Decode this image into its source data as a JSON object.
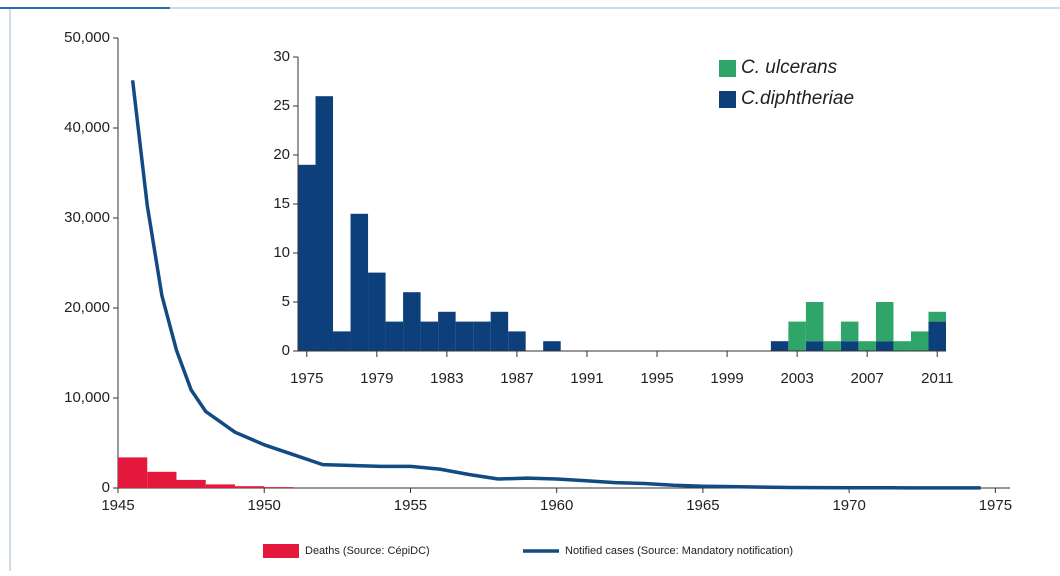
{
  "chart_data": [
    {
      "type": "line",
      "xlim": [
        1945,
        1975.5
      ],
      "xticks": [
        1945,
        1950,
        1955,
        1960,
        1965,
        1970,
        1975
      ],
      "ylim": [
        0,
        50000
      ],
      "yticks": [
        0,
        {
          "value": 10000,
          "label": "10,000"
        },
        {
          "value": 20000,
          "label": "20,000"
        },
        {
          "value": 30000,
          "label": "30,000"
        },
        {
          "value": 40000,
          "label": "40,000"
        },
        {
          "value": 50000,
          "label": "50,000"
        }
      ],
      "series": [
        {
          "name": "Deaths (Source: CépiDC)",
          "type": "bar",
          "color": "#e4183c",
          "x": [
            1945,
            1946,
            1947,
            1948,
            1949,
            1950
          ],
          "values": [
            3400,
            1800,
            900,
            400,
            200,
            100
          ]
        },
        {
          "name": "Notified cases (Source: Mandatory notification)",
          "type": "line",
          "color": "#124a82",
          "x": [
            1945.5,
            1946,
            1946.5,
            1947,
            1947.5,
            1948,
            1949,
            1950,
            1951,
            1952,
            1953,
            1954,
            1955,
            1956,
            1957,
            1958,
            1959,
            1960,
            1961,
            1962,
            1963,
            1964,
            1965,
            1966,
            1967,
            1968,
            1970,
            1972,
            1974.5
          ],
          "values": [
            45300,
            31400,
            21400,
            15300,
            10900,
            8500,
            6200,
            4800,
            3700,
            2600,
            2500,
            2400,
            2400,
            2100,
            1500,
            1000,
            1100,
            1000,
            800,
            600,
            500,
            300,
            200,
            150,
            100,
            60,
            30,
            20,
            10
          ]
        }
      ]
    },
    {
      "type": "bar",
      "stacked": true,
      "x": [
        1975,
        1976,
        1977,
        1978,
        1979,
        1980,
        1981,
        1982,
        1983,
        1984,
        1985,
        1986,
        1987,
        1988,
        1989,
        1990,
        1991,
        1992,
        1993,
        1994,
        1995,
        1996,
        1997,
        1998,
        1999,
        2000,
        2001,
        2002,
        2003,
        2004,
        2005,
        2006,
        2007,
        2008,
        2009,
        2010,
        2011
      ],
      "xlim": [
        1974.5,
        2011.5
      ],
      "xticks": [
        1975,
        1979,
        1983,
        1987,
        1991,
        1995,
        1999,
        2003,
        2007,
        2011
      ],
      "ylim": [
        0,
        30
      ],
      "yticks": [
        0,
        5,
        10,
        15,
        20,
        25,
        30
      ],
      "series": [
        {
          "name": "C.diphtheriae",
          "color": "#0d3f7a",
          "values": [
            19,
            26,
            2,
            14,
            8,
            3,
            6,
            3,
            4,
            3,
            3,
            4,
            2,
            0,
            1,
            0,
            0,
            0,
            0,
            0,
            0,
            0,
            0,
            0,
            0,
            0,
            0,
            1,
            0,
            1,
            0,
            1,
            0,
            1,
            0,
            0,
            3
          ]
        },
        {
          "name": "C. ulcerans",
          "color": "#2fa56a",
          "values": [
            0,
            0,
            0,
            0,
            0,
            0,
            0,
            0,
            0,
            0,
            0,
            0,
            0,
            0,
            0,
            0,
            0,
            0,
            0,
            0,
            0,
            0,
            0,
            0,
            0,
            0,
            0,
            0,
            3,
            4,
            1,
            2,
            1,
            4,
            1,
            2,
            1
          ]
        }
      ]
    }
  ]
}
